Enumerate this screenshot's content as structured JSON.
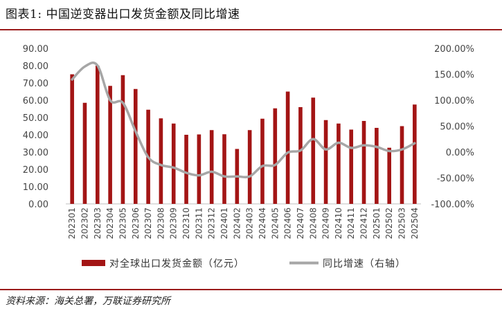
{
  "title": "图表1:  中国逆变器出口发货金额及同比增速",
  "source": "资料来源：海关总署，万联证券研究所",
  "colors": {
    "bar": "#a31515",
    "line": "#a6a6a6",
    "rule": "#9b1b1b"
  },
  "chart_data": {
    "type": "bar",
    "categories": [
      "202301",
      "202302",
      "202303",
      "202304",
      "202305",
      "202306",
      "202307",
      "202308",
      "202309",
      "202310",
      "202311",
      "202312",
      "202401",
      "202402",
      "202403",
      "202404",
      "202405",
      "202406",
      "202407",
      "202408",
      "202409",
      "202410",
      "202411",
      "202412",
      "202501",
      "202502",
      "202503",
      "202504"
    ],
    "series": [
      {
        "name": "对全球出口发货金额（亿元）",
        "type": "bar",
        "axis": "left",
        "values": [
          75.0,
          58.5,
          80.0,
          68.3,
          74.5,
          66.5,
          54.5,
          49.5,
          46.5,
          40.0,
          40.2,
          42.7,
          40.3,
          31.8,
          42.7,
          49.3,
          55.3,
          65.0,
          56.0,
          61.5,
          48.5,
          46.5,
          43.0,
          48.0,
          44.0,
          32.5,
          45.0,
          57.5
        ]
      },
      {
        "name": "同比增速（右轴）",
        "type": "line",
        "axis": "right",
        "values": [
          140,
          165,
          167,
          100,
          95,
          40,
          -10,
          -25,
          -30,
          -40,
          -45,
          -38,
          -47,
          -47,
          -47,
          -27,
          -25,
          -1,
          3,
          25,
          5,
          18,
          8,
          13,
          10,
          2,
          5,
          17
        ]
      }
    ],
    "y_left": {
      "min": 0,
      "max": 90,
      "ticks": [
        "0.00",
        "10.00",
        "20.00",
        "30.00",
        "40.00",
        "50.00",
        "60.00",
        "70.00",
        "80.00",
        "90.00"
      ]
    },
    "y_right": {
      "min": -100,
      "max": 200,
      "ticks": [
        "-100.00%",
        "-50.00%",
        "0.00%",
        "50.00%",
        "100.00%",
        "150.00%",
        "200.00%"
      ]
    },
    "grid": false,
    "legend_position": "bottom"
  }
}
